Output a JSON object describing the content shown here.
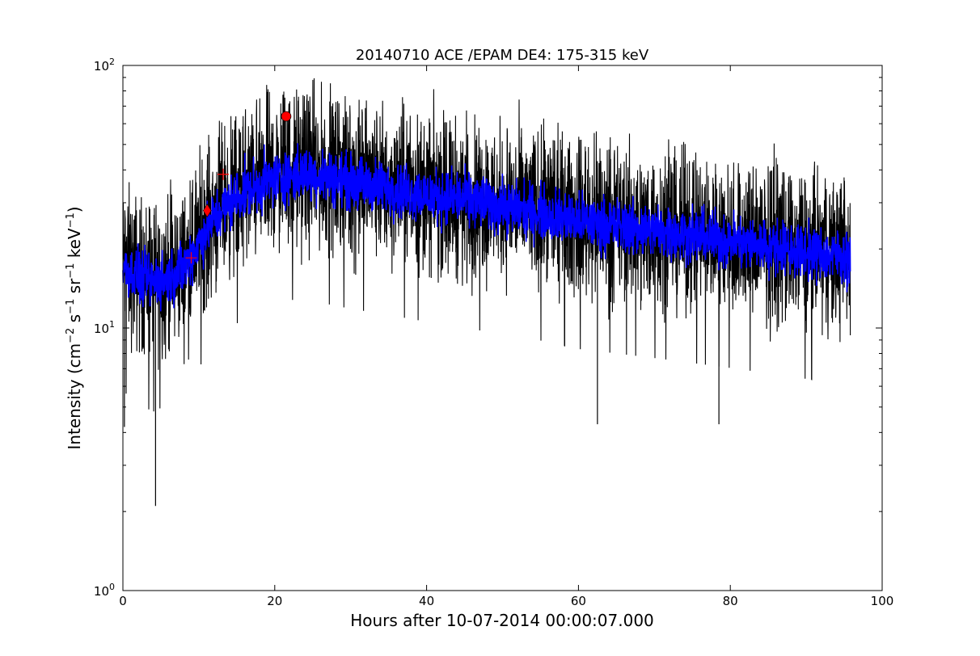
{
  "chart_data": {
    "type": "line",
    "title": "20140710 ACE /EPAM DE4: 175-315 keV",
    "xlabel": "Hours after 10-07-2014 00:00:07.000",
    "ylabel_parts": [
      "Intensity (cm",
      "−2",
      " s",
      "−1",
      " sr",
      "−1",
      " keV",
      "−1",
      ")"
    ],
    "xlim": [
      0,
      100
    ],
    "ylim": [
      1,
      100
    ],
    "yscale": "log",
    "grid": false,
    "xticks": [
      0,
      20,
      40,
      60,
      80,
      100
    ],
    "xtick_labels": [
      "0",
      "20",
      "40",
      "60",
      "80",
      "100"
    ],
    "yticks": [
      1,
      10,
      100
    ],
    "ytick_labels": [
      {
        "base": "10",
        "exp": "0"
      },
      {
        "base": "10",
        "exp": "1"
      },
      {
        "base": "10",
        "exp": "2"
      }
    ],
    "data_end_hour": 95.8,
    "series": [
      {
        "role": "raw-intensity",
        "color": "#000000",
        "profile": [
          [
            0,
            18
          ],
          [
            2,
            16
          ],
          [
            4,
            15
          ],
          [
            6,
            16
          ],
          [
            8,
            17
          ],
          [
            10,
            22
          ],
          [
            12,
            27
          ],
          [
            14,
            31
          ],
          [
            16,
            34
          ],
          [
            18,
            37
          ],
          [
            20,
            39
          ],
          [
            22,
            40
          ],
          [
            24,
            40
          ],
          [
            26,
            39
          ],
          [
            30,
            37
          ],
          [
            35,
            35
          ],
          [
            40,
            33
          ],
          [
            45,
            31
          ],
          [
            50,
            30
          ],
          [
            55,
            28
          ],
          [
            60,
            26
          ],
          [
            65,
            25
          ],
          [
            70,
            24
          ],
          [
            75,
            23
          ],
          [
            80,
            22
          ],
          [
            85,
            21
          ],
          [
            90,
            20
          ],
          [
            95.8,
            19
          ]
        ],
        "spikes": [
          {
            "x": 4.3,
            "y": 2.1
          },
          {
            "x": 21.5,
            "y": 65
          },
          {
            "x": 31.5,
            "y": 68
          },
          {
            "x": 62.5,
            "y": 4.3
          },
          {
            "x": 78.5,
            "y": 4.3
          },
          {
            "x": 0.2,
            "y": 4.2
          }
        ]
      },
      {
        "role": "smoothed-intensity",
        "color": "#0000ff",
        "profile": [
          [
            0,
            17
          ],
          [
            2,
            15.5
          ],
          [
            4,
            15
          ],
          [
            6,
            15.5
          ],
          [
            8,
            17
          ],
          [
            10,
            21
          ],
          [
            12,
            26
          ],
          [
            14,
            30
          ],
          [
            16,
            33
          ],
          [
            18,
            35
          ],
          [
            20,
            37
          ],
          [
            22,
            38
          ],
          [
            24,
            38.5
          ],
          [
            26,
            38
          ],
          [
            30,
            36
          ],
          [
            35,
            34
          ],
          [
            40,
            32
          ],
          [
            45,
            31
          ],
          [
            50,
            29
          ],
          [
            55,
            27.5
          ],
          [
            60,
            25.5
          ],
          [
            65,
            24.5
          ],
          [
            70,
            23.5
          ],
          [
            75,
            22.5
          ],
          [
            80,
            21.5
          ],
          [
            85,
            20.5
          ],
          [
            90,
            19.5
          ],
          [
            95.8,
            18.5
          ]
        ]
      }
    ],
    "markers": [
      {
        "shape": "circle",
        "x": 21.5,
        "y": 64,
        "color": "#ff0000"
      },
      {
        "shape": "diamond",
        "x": 11.1,
        "y": 28,
        "color": "#ff0000"
      },
      {
        "shape": "plus",
        "x": 9.0,
        "y": 18.5,
        "color": "#ff0000"
      },
      {
        "shape": "plus",
        "x": 13.2,
        "y": 38.5,
        "color": "#ff0000"
      }
    ]
  }
}
